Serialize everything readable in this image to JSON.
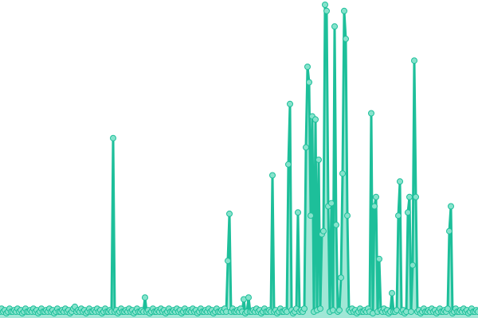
{
  "chart_data": {
    "type": "line",
    "title": "",
    "xlabel": "",
    "ylabel": "",
    "grid": false,
    "legend": "none",
    "markers": true,
    "area_fill": true,
    "ylim": [
      0,
      100
    ],
    "colors": {
      "line": "#1dbf9a",
      "marker_fill": "#86e3cc",
      "area": "#8fe3cf"
    },
    "values": [
      1,
      2,
      1,
      1.5,
      0.5,
      1,
      2,
      1,
      1,
      1.5,
      1,
      2,
      1,
      1.5,
      0.5,
      1,
      2,
      1,
      1,
      1.5,
      1,
      2,
      1,
      1.5,
      0.5,
      1,
      2,
      1,
      1,
      1.5,
      1,
      2,
      1,
      1.5,
      0.5,
      1,
      2,
      1,
      1,
      1.5,
      1,
      2,
      1,
      1.5,
      0.5,
      1,
      2,
      2.6,
      1,
      1.5,
      1,
      2,
      1,
      1.5,
      0.5,
      1,
      2,
      1,
      1,
      1.5,
      1,
      2,
      1,
      1.5,
      0.5,
      1,
      2,
      1,
      1,
      1.5,
      1,
      57,
      1,
      1.5,
      0.5,
      1,
      2,
      1,
      1,
      1.5,
      1,
      2,
      1,
      1.5,
      0.5,
      1,
      2,
      1,
      1,
      1.5,
      1,
      5.6,
      1,
      1.5,
      0.5,
      1,
      2,
      1,
      1,
      1.5,
      1,
      2,
      1,
      1.5,
      0.5,
      1,
      2,
      1,
      1,
      1.5,
      1,
      2,
      1,
      1.5,
      0.5,
      1,
      2,
      1,
      1,
      1.5,
      1,
      2,
      1,
      1.5,
      0.5,
      1,
      2,
      1,
      1,
      1.5,
      1,
      2,
      1,
      1.5,
      0.5,
      1,
      2,
      1,
      1,
      1.5,
      1,
      2,
      1,
      17.4,
      32.6,
      1,
      2,
      1,
      1,
      1.5,
      1,
      2,
      1,
      5,
      0.5,
      1,
      5.6,
      1,
      1,
      1.5,
      1,
      2,
      1,
      1.5,
      0.5,
      1,
      2,
      1,
      1,
      1.5,
      1,
      45,
      1,
      1.5,
      0.5,
      1,
      2,
      1,
      1,
      1.5,
      1,
      48.5,
      68,
      1.5,
      0.5,
      1,
      2,
      33,
      1,
      1.5,
      1,
      2,
      54,
      80,
      75,
      32,
      64,
      1,
      63,
      1.5,
      50,
      2,
      26,
      27,
      100,
      98,
      35,
      1,
      36,
      1.5,
      93,
      29,
      1,
      1.5,
      12,
      45.6,
      98,
      89,
      32,
      1.5,
      1,
      2,
      1,
      1.5,
      0.5,
      1,
      2,
      1,
      1,
      1.5,
      1,
      2,
      1,
      65,
      0.5,
      35,
      38,
      1,
      18,
      1.5,
      1,
      2,
      1,
      1.5,
      0.5,
      1,
      7,
      1,
      1,
      1.5,
      32,
      43,
      1,
      1.5,
      0.5,
      1,
      33,
      38,
      1,
      16,
      82,
      38,
      1,
      1.5,
      0.5,
      1,
      2,
      1,
      1,
      1.5,
      1,
      2,
      1,
      1.5,
      0.5,
      1,
      2,
      1,
      1,
      1.5,
      1,
      2,
      27,
      35,
      0.5,
      1,
      2,
      1,
      1,
      1.5,
      1,
      2,
      1,
      1.5,
      0.5,
      1,
      2,
      1,
      1,
      1.5,
      1
    ]
  }
}
